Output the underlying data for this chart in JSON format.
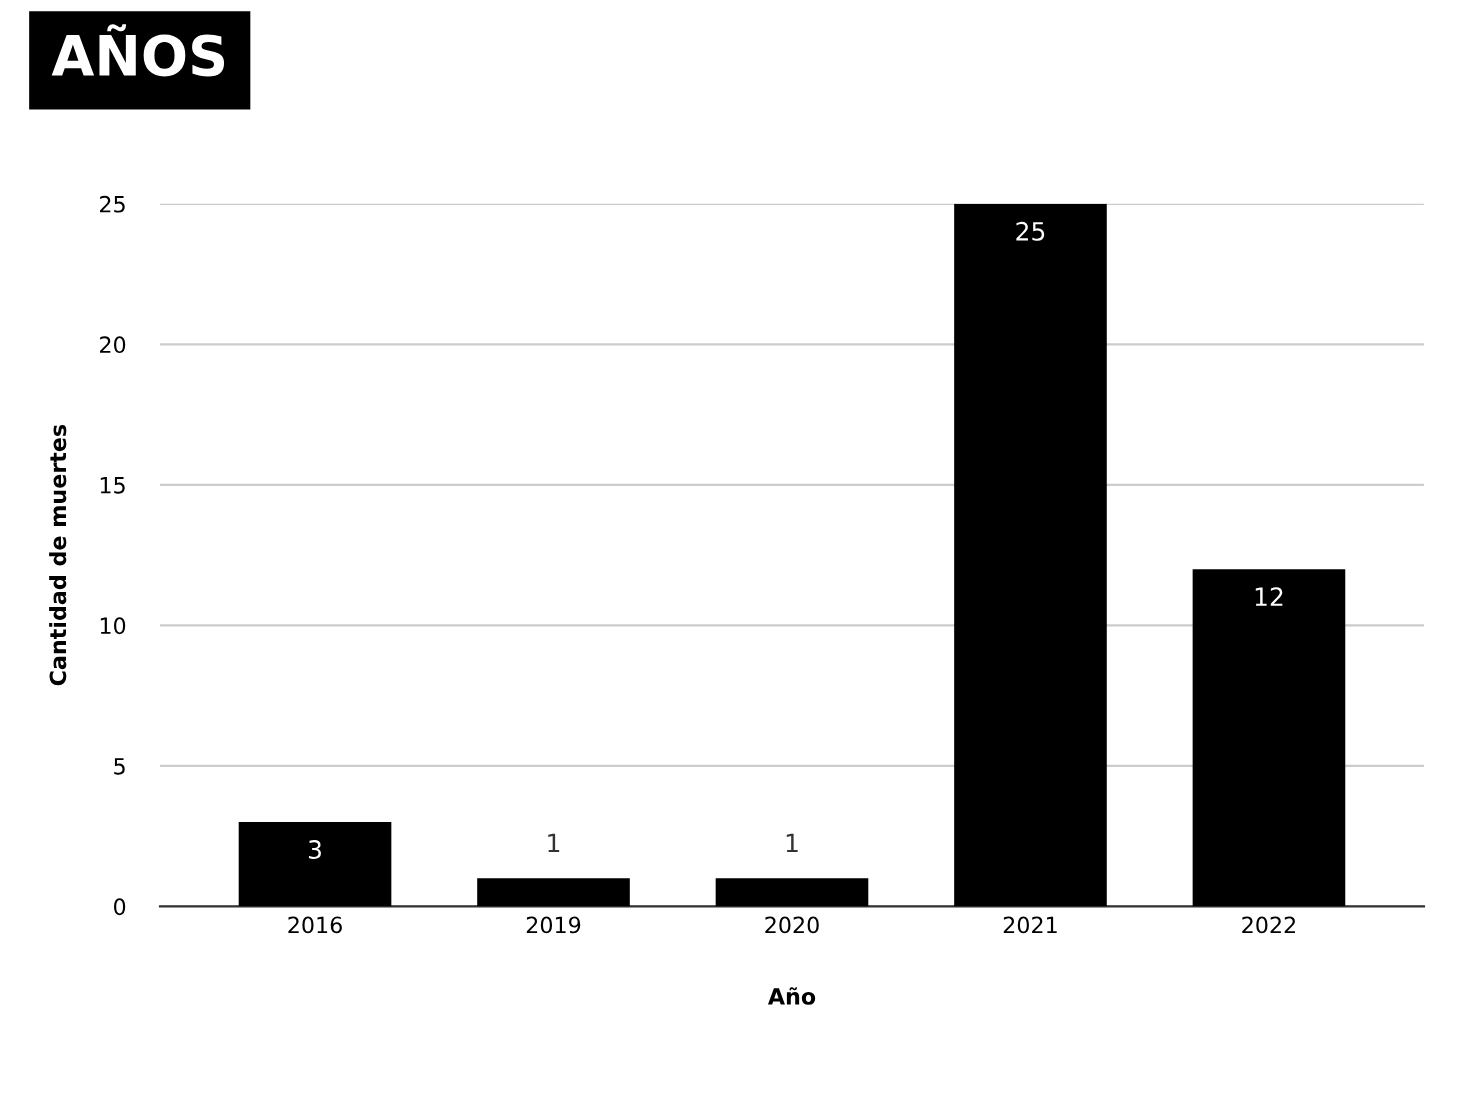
{
  "chart_data": {
    "type": "bar",
    "title": "AÑOS",
    "xlabel": "Año",
    "ylabel": "Cantidad de muertes",
    "categories": [
      "2016",
      "2019",
      "2020",
      "2021",
      "2022"
    ],
    "values": [
      3,
      1,
      1,
      25,
      12
    ],
    "color": "#000000",
    "ylim": [
      0,
      25
    ],
    "yticks": [
      0,
      5,
      10,
      15,
      20,
      25
    ],
    "grid": "y",
    "data_labels": true
  }
}
